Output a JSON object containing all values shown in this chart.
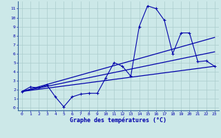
{
  "title": "Graphe des températures (°C)",
  "bg_color": "#cce8e8",
  "grid_color": "#aacccc",
  "line_color": "#0000aa",
  "border_color": "#336699",
  "xlim": [
    -0.5,
    23.5
  ],
  "ylim": [
    -0.3,
    11.8
  ],
  "xticks": [
    0,
    1,
    2,
    3,
    4,
    5,
    6,
    7,
    8,
    9,
    10,
    11,
    12,
    13,
    14,
    15,
    16,
    17,
    18,
    19,
    20,
    21,
    22,
    23
  ],
  "yticks": [
    0,
    1,
    2,
    3,
    4,
    5,
    6,
    7,
    8,
    9,
    10,
    11
  ],
  "series_main": {
    "x": [
      0,
      1,
      2,
      3,
      4,
      5,
      6,
      7,
      8,
      9,
      10,
      11,
      12,
      13,
      14,
      15,
      16,
      17,
      18,
      19,
      20,
      21,
      22,
      23
    ],
    "y": [
      1.8,
      2.3,
      2.2,
      2.5,
      1.2,
      0.1,
      1.2,
      1.5,
      1.6,
      1.6,
      3.3,
      5.0,
      4.6,
      3.5,
      9.0,
      11.3,
      11.0,
      9.7,
      6.0,
      8.3,
      8.3,
      5.1,
      5.2,
      4.6
    ]
  },
  "line1": {
    "x": [
      0,
      23
    ],
    "y": [
      1.8,
      4.6
    ]
  },
  "line2": {
    "x": [
      0,
      23
    ],
    "y": [
      1.8,
      7.8
    ]
  },
  "line3": {
    "x": [
      0,
      23
    ],
    "y": [
      1.8,
      6.2
    ]
  }
}
